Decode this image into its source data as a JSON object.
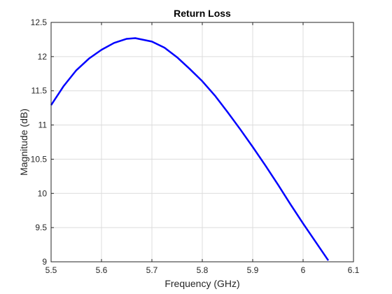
{
  "chart_data": {
    "type": "line",
    "title": "Return Loss",
    "xlabel": "Frequency (GHz)",
    "ylabel": "Magnitude (dB)",
    "xlim": [
      5.5,
      6.1
    ],
    "ylim": [
      9,
      12.5
    ],
    "xticks": [
      "5.5",
      "5.6",
      "5.7",
      "5.8",
      "5.9",
      "6",
      "6.1"
    ],
    "yticks": [
      "9",
      "9.5",
      "10",
      "10.5",
      "11",
      "11.5",
      "12",
      "12.5"
    ],
    "grid": true,
    "series": [
      {
        "color": "#0000ff",
        "x": [
          5.5,
          5.525,
          5.55,
          5.575,
          5.6,
          5.625,
          5.65,
          5.667,
          5.7,
          5.725,
          5.75,
          5.775,
          5.8,
          5.825,
          5.85,
          5.875,
          5.9,
          5.925,
          5.95,
          5.975,
          6.0,
          6.025,
          6.05
        ],
        "y": [
          11.29,
          11.57,
          11.8,
          11.97,
          12.1,
          12.2,
          12.26,
          12.27,
          12.22,
          12.13,
          11.99,
          11.82,
          11.64,
          11.43,
          11.19,
          10.94,
          10.68,
          10.41,
          10.13,
          9.84,
          9.56,
          9.29,
          9.02
        ]
      }
    ]
  }
}
